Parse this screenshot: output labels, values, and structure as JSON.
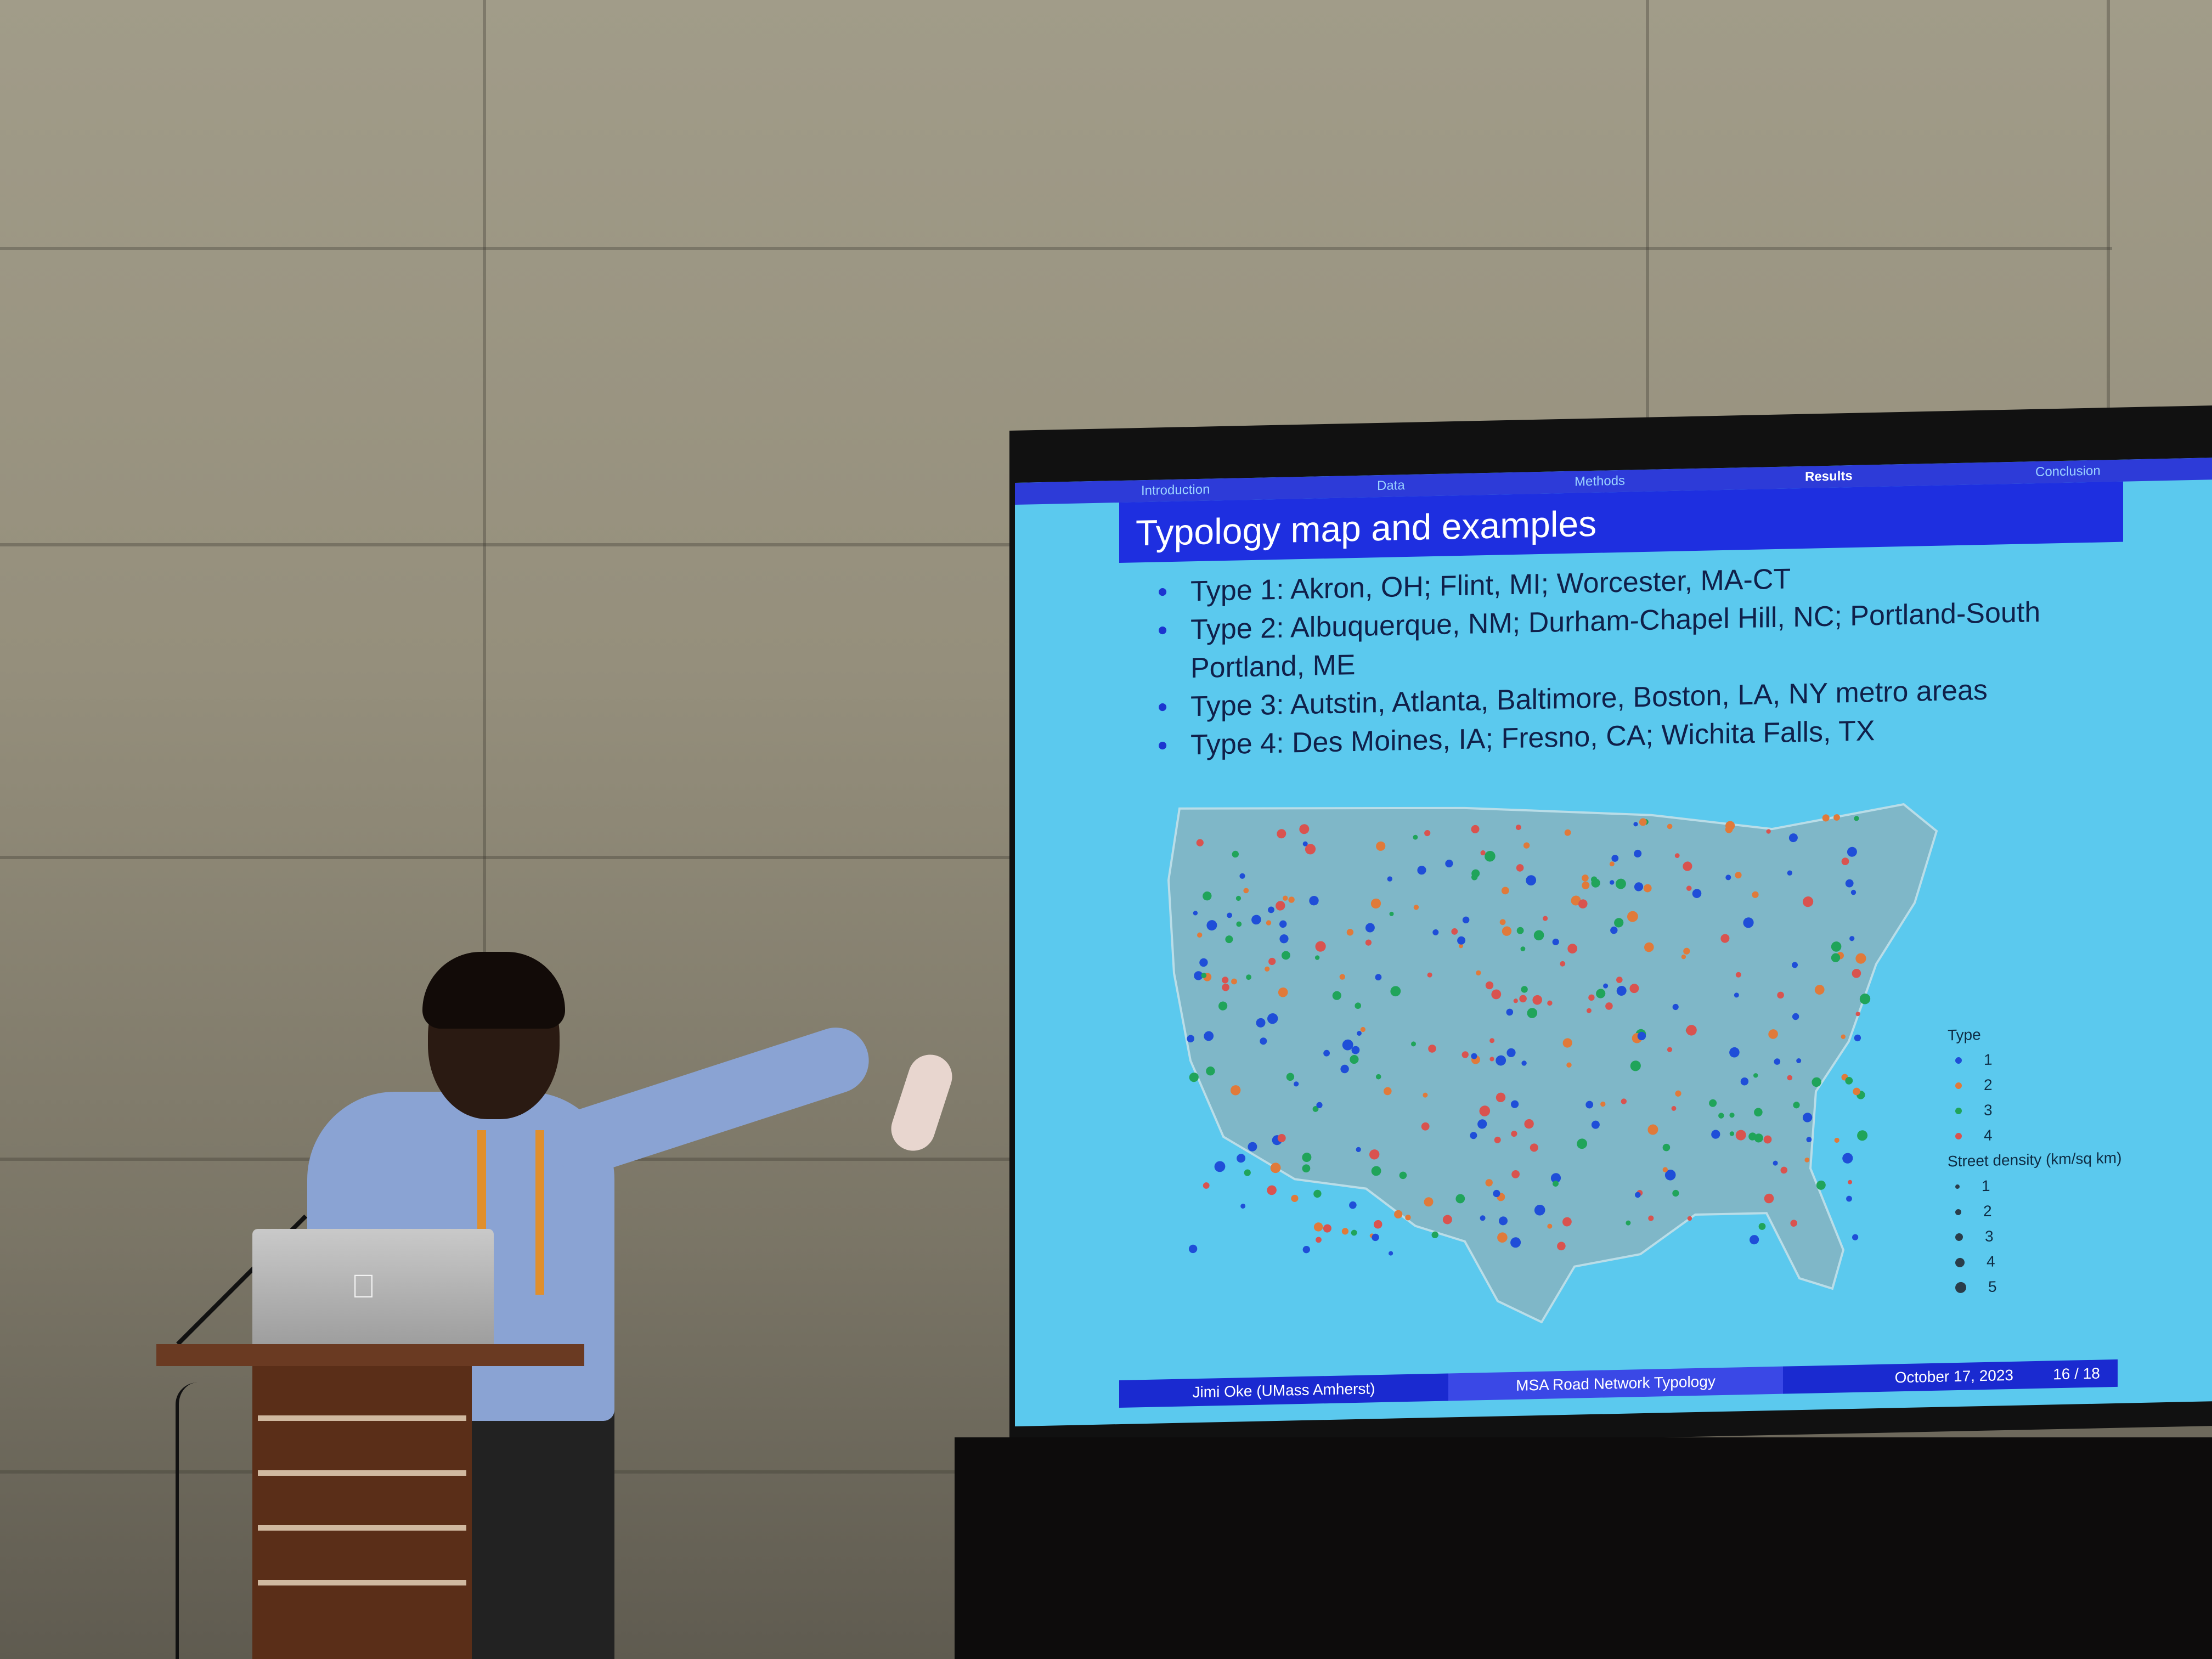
{
  "slide": {
    "nav": [
      "Introduction",
      "Data",
      "Methods",
      "Results",
      "Conclusion"
    ],
    "active_nav": "Results",
    "title": "Typology map and examples",
    "bullets": [
      "Type 1: Akron, OH; Flint, MI; Worcester, MA-CT",
      "Type 2: Albuquerque, NM; Durham-Chapel Hill, NC; Portland-South Portland, ME",
      "Type 3: Autstin, Atlanta, Baltimore, Boston, LA, NY metro areas",
      "Type 4: Des Moines, IA; Fresno, CA; Wichita Falls, TX"
    ],
    "legend": {
      "type_title": "Type",
      "types": [
        {
          "label": "1",
          "color": "#1f4ed8"
        },
        {
          "label": "2",
          "color": "#e07a3a"
        },
        {
          "label": "3",
          "color": "#20a45a"
        },
        {
          "label": "4",
          "color": "#d9534f"
        }
      ],
      "density_title": "Street density (km/sq km)",
      "densities": [
        "1",
        "2",
        "3",
        "4",
        "5"
      ]
    },
    "footer": {
      "author": "Jimi Oke  (UMass Amherst)",
      "talk": "MSA Road Network Typology",
      "date": "October 17, 2023",
      "page": "16 / 18"
    }
  },
  "colors": {
    "slide_bg": "#5bc9ee",
    "title_bar": "#1e2fe0",
    "wall": "#958f7c"
  }
}
